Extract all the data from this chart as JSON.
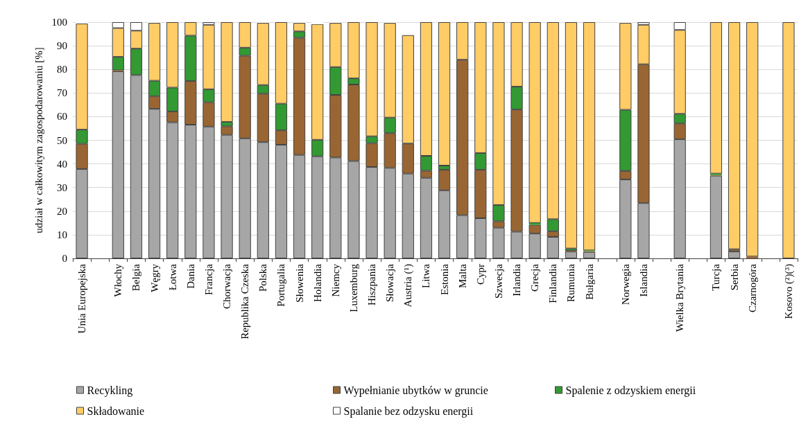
{
  "chart_data": {
    "type": "bar",
    "stacked": true,
    "ylabel": "udział w całkowitym zagospodarowaniu [%]",
    "categories": [
      "Unia Europejska",
      null,
      "Włochy",
      "Belgia",
      "Węgry",
      "Łotwa",
      "Dania",
      "Francja",
      "Chorwacja",
      "Republika Czeska",
      "Polska",
      "Portugalia",
      "Słowenia",
      "Holandia",
      "Niemcy",
      "Luxemburg",
      "Hiszpania",
      "Słowacja",
      "Austria (¹)",
      "Litwa",
      "Estonia",
      "Malta",
      "Cypr",
      "Szwecja",
      "Irlandia",
      "Grecja",
      "Finlandia",
      "Rumunia",
      "Bułgaria",
      null,
      "Norwegia",
      "Islandia",
      null,
      "Wielka Brytania",
      null,
      "Turcja",
      "Serbia",
      "Czarnogóra",
      null,
      "Kosovo (²)(³)"
    ],
    "series": [
      {
        "name": "Recykling",
        "color": "#a6a6a6",
        "values": [
          37.8,
          null,
          79.2,
          77.6,
          63.3,
          57.6,
          56.6,
          55.8,
          52.3,
          50.8,
          49.2,
          48.1,
          43.8,
          43.2,
          42.7,
          41.2,
          38.7,
          38.3,
          35.9,
          34.1,
          28.8,
          18.3,
          17.0,
          13.0,
          11.3,
          10.5,
          9.1,
          2.9,
          2.7,
          null,
          33.4,
          23.4,
          null,
          50.4,
          null,
          35.0,
          2.9,
          null,
          null,
          0
        ]
      },
      {
        "name": "Wypełnianie ubytków w gruncie",
        "color": "#996633",
        "values": [
          10.7,
          null,
          0.4,
          0,
          5.4,
          4.6,
          18.5,
          10.3,
          3.6,
          35.0,
          20.5,
          6.1,
          49.6,
          0,
          26.5,
          32.4,
          10.1,
          14.7,
          12.7,
          3.0,
          8.7,
          65.8,
          20.5,
          2.7,
          51.7,
          3.7,
          2.4,
          0.3,
          0.3,
          null,
          3.6,
          58.8,
          null,
          6.7,
          null,
          0.3,
          1.0,
          0.8,
          null,
          0
        ]
      },
      {
        "name": "Spalenie z odzyskiem energii",
        "color": "#339933",
        "values": [
          6.0,
          null,
          5.7,
          11.2,
          6.5,
          10.1,
          19.2,
          5.5,
          1.9,
          3.4,
          3.7,
          11.3,
          2.7,
          7.0,
          11.8,
          2.6,
          2.9,
          6.6,
          0,
          6.3,
          1.8,
          0,
          7.1,
          6.9,
          9.7,
          0.8,
          5.1,
          1.0,
          0.4,
          null,
          25.9,
          0,
          null,
          4.1,
          null,
          0.6,
          0,
          0,
          null,
          0
        ]
      },
      {
        "name": "Składowanie",
        "color": "#ffcc66",
        "values": [
          44.9,
          null,
          12.2,
          7.6,
          24.5,
          27.7,
          5.7,
          27.3,
          42.2,
          10.8,
          26.3,
          34.5,
          3.6,
          49.0,
          18.7,
          23.8,
          48.3,
          40.1,
          45.9,
          56.6,
          60.7,
          15.9,
          55.4,
          77.4,
          27.3,
          85.0,
          83.4,
          95.8,
          96.6,
          null,
          36.8,
          16.7,
          null,
          35.5,
          null,
          64.1,
          96.1,
          99.2,
          null,
          100
        ]
      },
      {
        "name": "Spalanie bez odzysku energii",
        "color": "#ffffff",
        "values": [
          0.6,
          null,
          2.5,
          3.6,
          0.3,
          0,
          0,
          1.1,
          0,
          0,
          0.3,
          0,
          0.3,
          0.8,
          0.3,
          0,
          0,
          0.3,
          0,
          0,
          0,
          0,
          0,
          0,
          0,
          0,
          0,
          0,
          0,
          null,
          0.3,
          1.1,
          null,
          3.3,
          null,
          0,
          0,
          0,
          null,
          0
        ]
      }
    ],
    "ylim": [
      0,
      100
    ],
    "yticks": [
      0,
      10,
      20,
      30,
      40,
      50,
      60,
      70,
      80,
      90,
      100
    ],
    "grid": "y",
    "legend": "bottom"
  }
}
